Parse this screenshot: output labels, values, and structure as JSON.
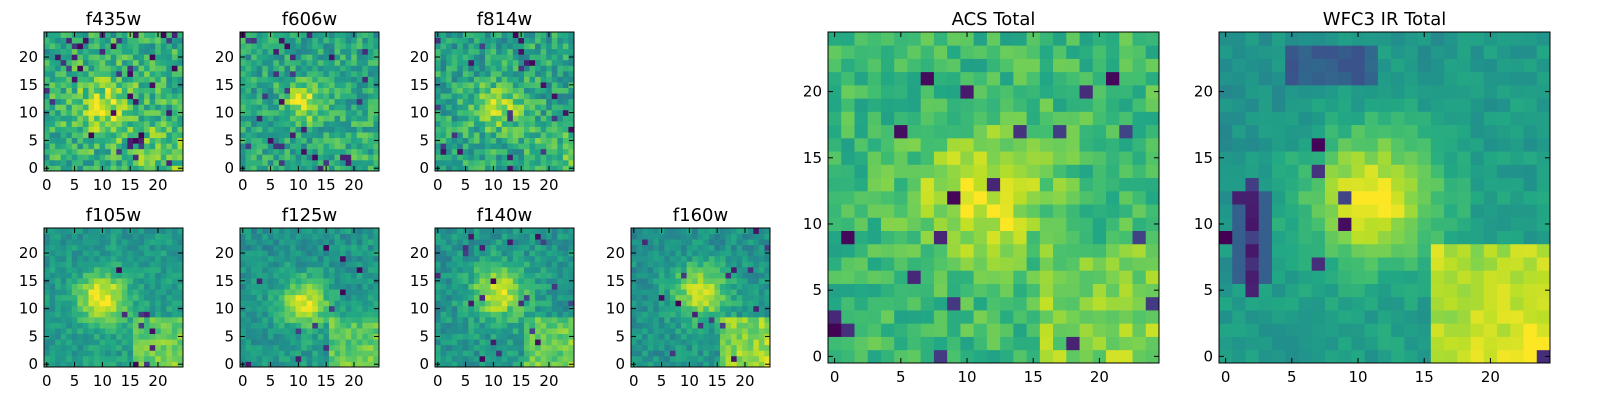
{
  "chart_data": {
    "type": "heatmap",
    "colormap": "viridis",
    "grid": false,
    "legend": "none",
    "panels": [
      {
        "title": "f435w",
        "xlim": [
          0,
          25
        ],
        "ylim": [
          0,
          25
        ],
        "xticks": [
          0,
          5,
          10,
          15,
          20
        ],
        "yticks": [
          0,
          5,
          10,
          15,
          20
        ],
        "peak": [
          11,
          11
        ],
        "peak_sigma": 4.0,
        "peak_amp": 0.25,
        "base": 0.62,
        "noise": 0.35,
        "corner_boost": 0.1,
        "dark_fraction": 0.06
      },
      {
        "title": "f606w",
        "xlim": [
          0,
          25
        ],
        "ylim": [
          0,
          25
        ],
        "xticks": [
          0,
          5,
          10,
          15,
          20
        ],
        "yticks": [
          0,
          5,
          10,
          15,
          20
        ],
        "peak": [
          11,
          12
        ],
        "peak_sigma": 2.5,
        "peak_amp": 0.35,
        "base": 0.58,
        "noise": 0.32,
        "corner_boost": 0.05,
        "dark_fraction": 0.05
      },
      {
        "title": "f814w",
        "xlim": [
          0,
          25
        ],
        "ylim": [
          0,
          25
        ],
        "xticks": [
          0,
          5,
          10,
          15,
          20
        ],
        "yticks": [
          0,
          5,
          10,
          15,
          20
        ],
        "peak": [
          11,
          11
        ],
        "peak_sigma": 3.0,
        "peak_amp": 0.3,
        "base": 0.58,
        "noise": 0.33,
        "corner_boost": 0.1,
        "dark_fraction": 0.05
      },
      {
        "title": "f105w",
        "xlim": [
          0,
          25
        ],
        "ylim": [
          0,
          25
        ],
        "xticks": [
          0,
          5,
          10,
          15,
          20
        ],
        "yticks": [
          0,
          5,
          10,
          15,
          20
        ],
        "peak": [
          10,
          12
        ],
        "peak_sigma": 3.2,
        "peak_amp": 0.45,
        "base": 0.52,
        "noise": 0.18,
        "corner_boost": 0.25,
        "dark_fraction": 0.02
      },
      {
        "title": "f125w",
        "xlim": [
          0,
          25
        ],
        "ylim": [
          0,
          25
        ],
        "xticks": [
          0,
          5,
          10,
          15,
          20
        ],
        "yticks": [
          0,
          5,
          10,
          15,
          20
        ],
        "peak": [
          11,
          11
        ],
        "peak_sigma": 3.0,
        "peak_amp": 0.45,
        "base": 0.5,
        "noise": 0.2,
        "corner_boost": 0.25,
        "dark_fraction": 0.02
      },
      {
        "title": "f140w",
        "xlim": [
          0,
          25
        ],
        "ylim": [
          0,
          25
        ],
        "xticks": [
          0,
          5,
          10,
          15,
          20
        ],
        "yticks": [
          0,
          5,
          10,
          15,
          20
        ],
        "peak": [
          11,
          13
        ],
        "peak_sigma": 3.5,
        "peak_amp": 0.4,
        "base": 0.5,
        "noise": 0.22,
        "corner_boost": 0.25,
        "dark_fraction": 0.03
      },
      {
        "title": "f160w",
        "xlim": [
          0,
          25
        ],
        "ylim": [
          0,
          25
        ],
        "xticks": [
          0,
          5,
          10,
          15,
          20
        ],
        "yticks": [
          0,
          5,
          10,
          15,
          20
        ],
        "peak": [
          12,
          13
        ],
        "peak_sigma": 3.5,
        "peak_amp": 0.4,
        "base": 0.48,
        "noise": 0.2,
        "corner_boost": 0.35,
        "dark_fraction": 0.03
      },
      {
        "title": "ACS Total",
        "xlim": [
          0,
          25
        ],
        "ylim": [
          0,
          25
        ],
        "xticks": [
          0,
          5,
          10,
          15,
          20
        ],
        "yticks": [
          0,
          5,
          10,
          15,
          20
        ],
        "peak": [
          11,
          12
        ],
        "peak_sigma": 3.5,
        "peak_amp": 0.3,
        "base": 0.66,
        "noise": 0.22,
        "corner_boost": 0.15,
        "dark_fraction": 0.04
      },
      {
        "title": "WFC3 IR Total",
        "xlim": [
          0,
          25
        ],
        "ylim": [
          0,
          25
        ],
        "xticks": [
          0,
          5,
          10,
          15,
          20
        ],
        "yticks": [
          0,
          5,
          10,
          15,
          20
        ],
        "peak": [
          11,
          12
        ],
        "peak_sigma": 3.5,
        "peak_amp": 0.45,
        "base": 0.5,
        "noise": 0.12,
        "corner_boost": 0.4,
        "dark_fraction": 0.01,
        "dark_column": 2,
        "dark_top_band": [
          21,
          23
        ]
      }
    ]
  }
}
